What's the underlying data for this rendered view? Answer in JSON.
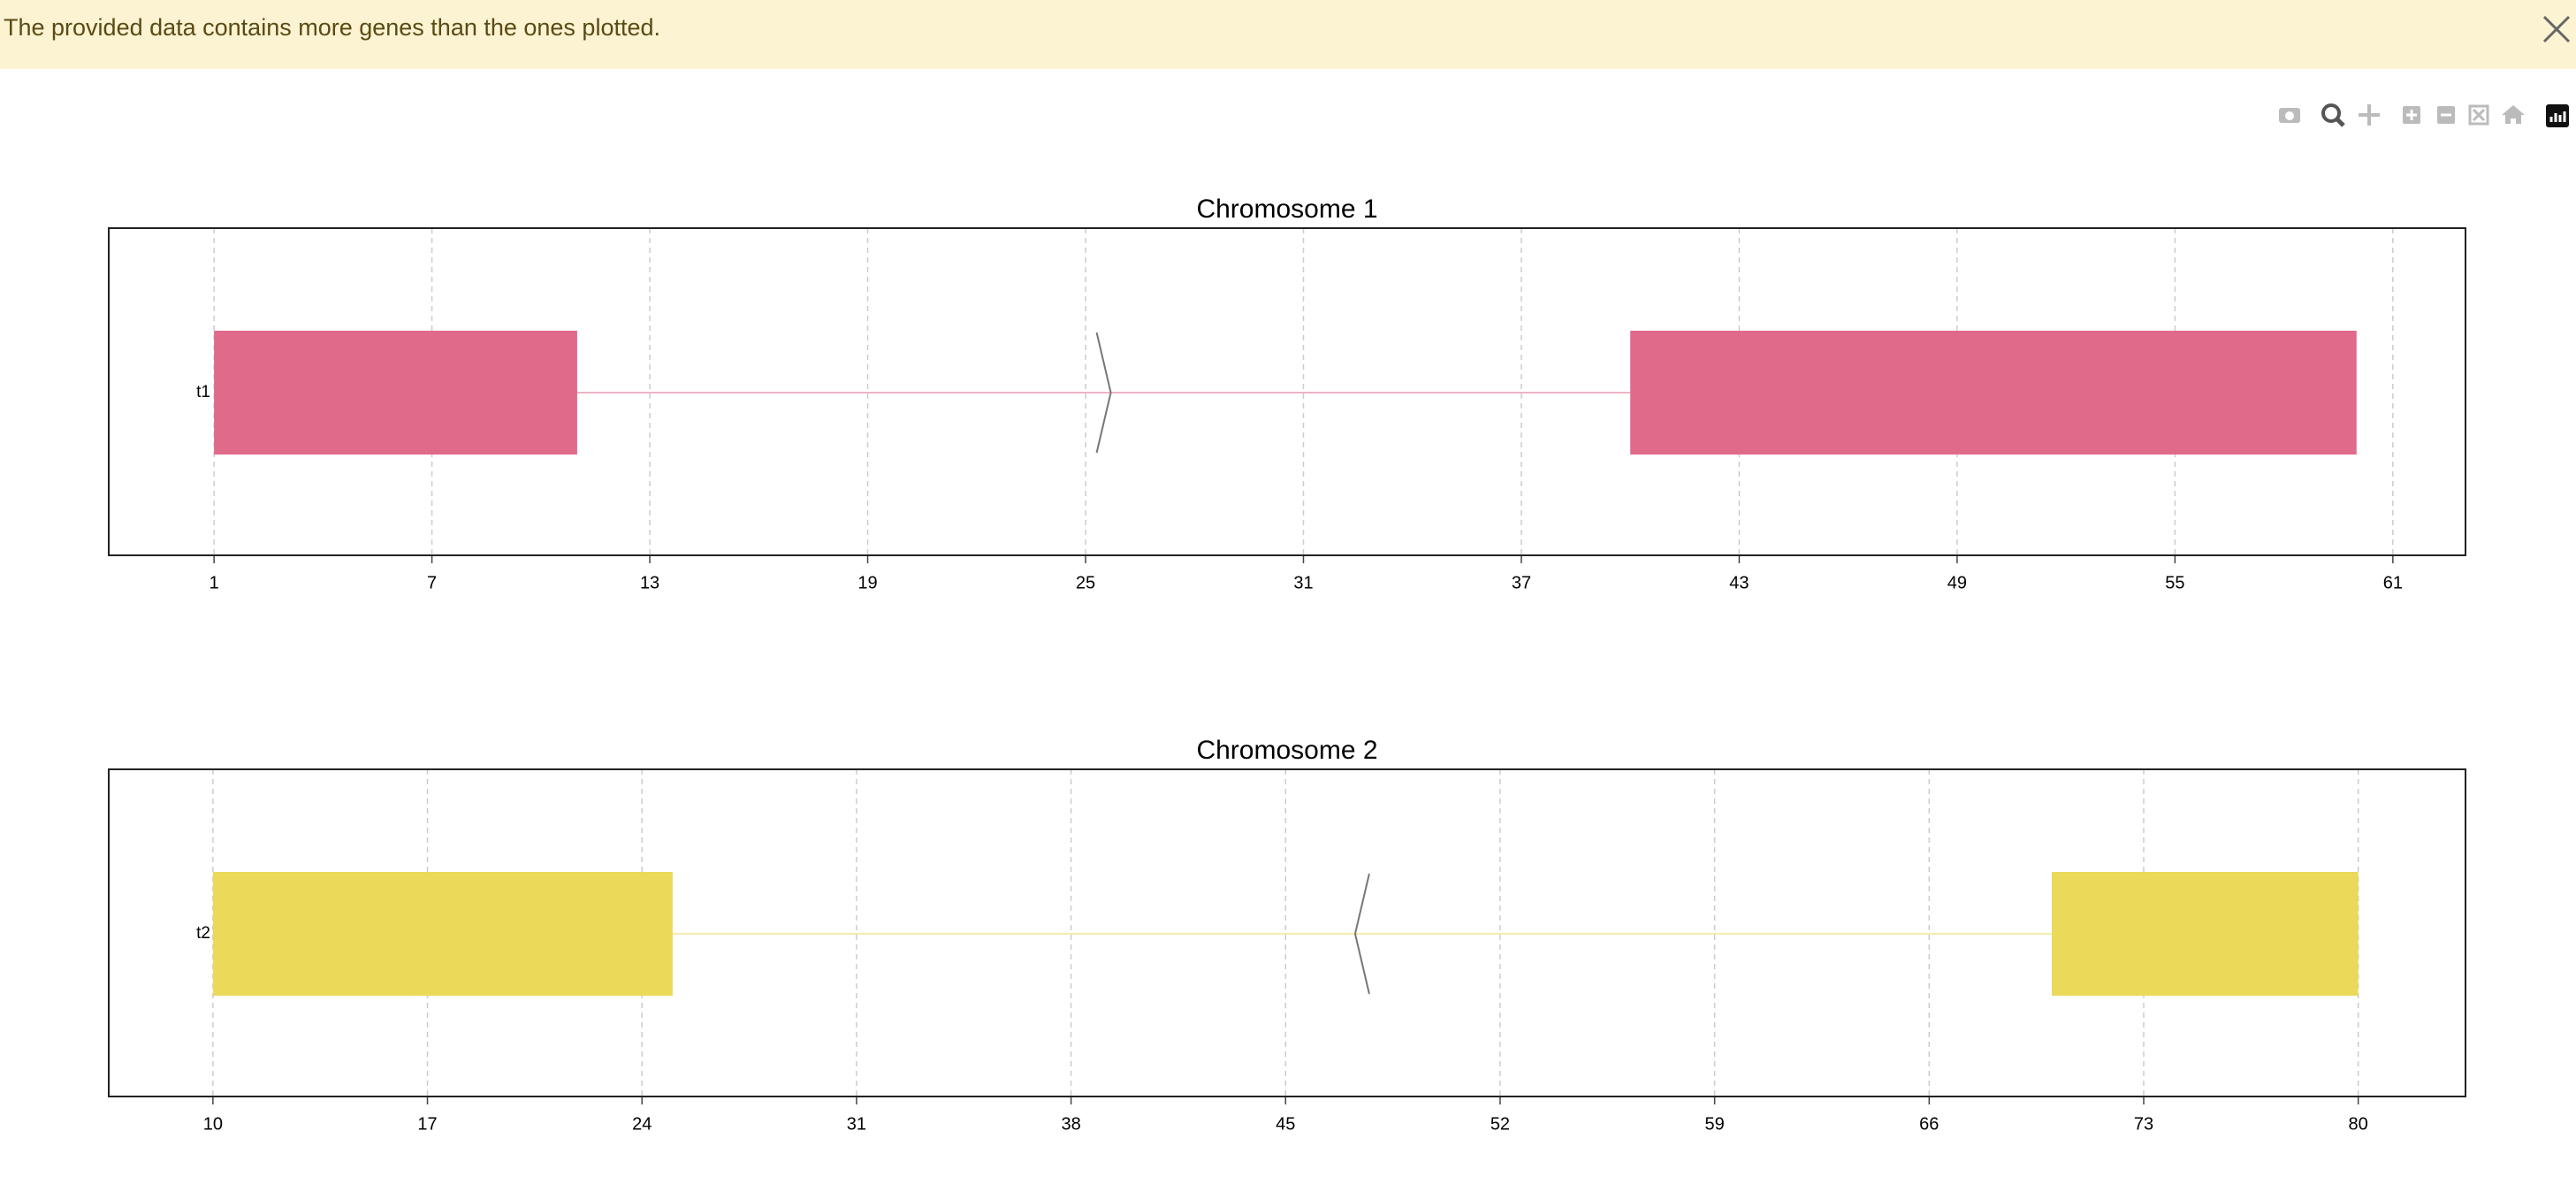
{
  "banner": {
    "message": "The provided data contains more genes than the ones plotted."
  },
  "chart_data": [
    {
      "type": "gene",
      "title": "Chromosome 1",
      "track": "t1",
      "color": "#e06a8a",
      "strand": "+",
      "exons": [
        {
          "start": 1,
          "end": 11
        },
        {
          "start": 40,
          "end": 60
        }
      ],
      "xlim": [
        -1.9,
        63
      ],
      "xticks": [
        1,
        7,
        13,
        19,
        25,
        31,
        37,
        43,
        49,
        55,
        61
      ],
      "grid": true
    },
    {
      "type": "gene",
      "title": "Chromosome 2",
      "track": "t2",
      "color": "#ebd95a",
      "strand": "-",
      "exons": [
        {
          "start": 10,
          "end": 25
        },
        {
          "start": 70,
          "end": 80
        }
      ],
      "xlim": [
        6.6,
        83.5
      ],
      "xticks": [
        10,
        17,
        24,
        31,
        38,
        45,
        52,
        59,
        66,
        73,
        80
      ],
      "grid": true
    }
  ]
}
